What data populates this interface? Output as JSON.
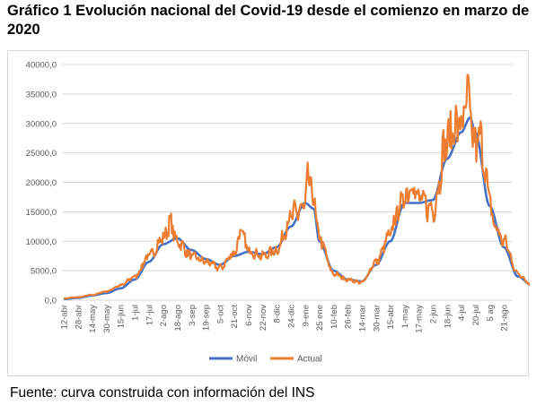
{
  "title": "Gráfico 1 Evolución nacional del Covid-19 desde el comienzo en marzo de 2020",
  "source": "Fuente: curva construida con información del INS",
  "colors": {
    "movil": "#4472c4",
    "actual": "#ed7d31",
    "grid": "#d9d9d9",
    "axis_text": "#595959"
  },
  "chart_data": {
    "type": "line",
    "title": "",
    "xlabel": "",
    "ylabel": "",
    "ylim": [
      0,
      40000
    ],
    "yticks": [
      "0,0",
      "5000,0",
      "10000,0",
      "15000,0",
      "20000,0",
      "25000,0",
      "30000,0",
      "35000,0",
      "40000,0"
    ],
    "grid": true,
    "legend_position": "bottom",
    "x_label_step": 16,
    "categories": [
      "12-abr",
      "28-abr",
      "14-may",
      "30-may",
      "15-jun",
      "1-jul",
      "17-jul",
      "2-ago",
      "18-ago",
      "3-sep",
      "19-sep",
      "5-oct",
      "21-oct",
      "6-nov",
      "22-nov",
      "8-dic",
      "24-dic",
      "9-ene",
      "25 ene",
      "10-feb",
      "26-feb",
      "14-mar",
      "30-mar",
      "15-abr",
      "1-may",
      "17-may",
      "2-jun",
      "18-jun",
      "4-jul",
      "20-jul",
      "5 ag",
      "21-ago"
    ],
    "x_start": "2020-04-12",
    "series": [
      {
        "name": "Móvil",
        "anchors": [
          [
            0,
            200
          ],
          [
            16,
            400
          ],
          [
            32,
            800
          ],
          [
            48,
            1200
          ],
          [
            64,
            2000
          ],
          [
            80,
            3500
          ],
          [
            96,
            6500
          ],
          [
            112,
            9500
          ],
          [
            128,
            10500
          ],
          [
            144,
            8500
          ],
          [
            160,
            7000
          ],
          [
            176,
            6000
          ],
          [
            192,
            7500
          ],
          [
            208,
            8200
          ],
          [
            224,
            7800
          ],
          [
            240,
            9000
          ],
          [
            256,
            12500
          ],
          [
            272,
            16500
          ],
          [
            282,
            15500
          ],
          [
            288,
            10000
          ],
          [
            304,
            5000
          ],
          [
            320,
            3500
          ],
          [
            336,
            3200
          ],
          [
            352,
            6000
          ],
          [
            368,
            10000
          ],
          [
            384,
            16500
          ],
          [
            400,
            16500
          ],
          [
            416,
            17000
          ],
          [
            432,
            24000
          ],
          [
            448,
            28500
          ],
          [
            458,
            31000
          ],
          [
            464,
            28500
          ],
          [
            480,
            16000
          ],
          [
            496,
            9000
          ],
          [
            512,
            4000
          ],
          [
            528,
            2500
          ],
          [
            541,
            1900
          ]
        ]
      },
      {
        "name": "Actual",
        "anchors": [
          [
            0,
            300
          ],
          [
            16,
            500
          ],
          [
            32,
            900
          ],
          [
            48,
            1500
          ],
          [
            64,
            2500
          ],
          [
            80,
            4000
          ],
          [
            96,
            7500
          ],
          [
            112,
            10500
          ],
          [
            120,
            13000
          ],
          [
            128,
            10000
          ],
          [
            144,
            7500
          ],
          [
            160,
            6500
          ],
          [
            176,
            5500
          ],
          [
            192,
            8000
          ],
          [
            200,
            11500
          ],
          [
            208,
            8500
          ],
          [
            224,
            7500
          ],
          [
            240,
            8500
          ],
          [
            256,
            14000
          ],
          [
            264,
            15000
          ],
          [
            272,
            16000
          ],
          [
            276,
            21000
          ],
          [
            282,
            16500
          ],
          [
            288,
            10500
          ],
          [
            304,
            4500
          ],
          [
            320,
            3500
          ],
          [
            336,
            3000
          ],
          [
            352,
            6500
          ],
          [
            368,
            11000
          ],
          [
            376,
            15000
          ],
          [
            384,
            17500
          ],
          [
            392,
            20000
          ],
          [
            400,
            17000
          ],
          [
            416,
            15500
          ],
          [
            432,
            27000
          ],
          [
            440,
            29500
          ],
          [
            448,
            30000
          ],
          [
            456,
            33700
          ],
          [
            462,
            26500
          ],
          [
            470,
            27000
          ],
          [
            480,
            17500
          ],
          [
            484,
            13000
          ],
          [
            496,
            10000
          ],
          [
            512,
            4500
          ],
          [
            528,
            2500
          ],
          [
            541,
            1500
          ]
        ]
      }
    ]
  }
}
